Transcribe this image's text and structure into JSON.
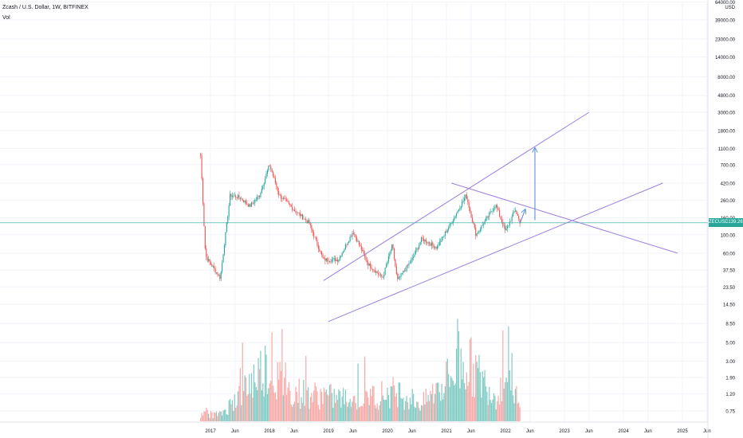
{
  "header": {
    "title": "Zcash / U.S. Dollar, 1W, BITFINEX",
    "volume_label": "Vol"
  },
  "currency": "USD",
  "symbol_badge": "ZECUSD",
  "last_price": "139.26",
  "colors": {
    "up": "#26a69a",
    "down": "#ef5350",
    "up_volume": "#80cbc4",
    "down_volume": "#f7a9a7",
    "trendline": "#9c7fe0",
    "arrow": "#5b8fe0",
    "price_line": "#26a69a"
  },
  "chart_data": {
    "type": "candlestick",
    "title": "Zcash / U.S. Dollar, 1W, BITFINEX",
    "x_axis": {
      "ticks": [
        "2017",
        "Jun",
        "2018",
        "Jun",
        "2019",
        "Jun",
        "2020",
        "Jun",
        "2021",
        "Jun",
        "2022",
        "Jun",
        "2023",
        "Jun",
        "2024",
        "Jun",
        "2025",
        "Jun"
      ]
    },
    "y_axis": {
      "scale": "log",
      "unit": "USD",
      "ticks": [
        "64000.00",
        "39000.00",
        "23000.00",
        "14000.00",
        "8000.00",
        "4800.00",
        "3000.00",
        "1800.00",
        "1100.00",
        "700.00",
        "420.00",
        "260.00",
        "160.00",
        "100.00",
        "60.00",
        "37.50",
        "23.50",
        "14.50",
        "8.50",
        "5.00",
        "3.00",
        "1.90",
        "1.20",
        "0.75"
      ],
      "range": [
        0.6,
        70000
      ]
    },
    "price_series": [
      {
        "date": "2016-11",
        "close": 900
      },
      {
        "date": "2016-12",
        "close": 55
      },
      {
        "date": "2017-03",
        "close": 30
      },
      {
        "date": "2017-05",
        "close": 300
      },
      {
        "date": "2017-07",
        "close": 280
      },
      {
        "date": "2017-09",
        "close": 220
      },
      {
        "date": "2017-11",
        "close": 300
      },
      {
        "date": "2018-01",
        "close": 700
      },
      {
        "date": "2018-03",
        "close": 300
      },
      {
        "date": "2018-06",
        "close": 200
      },
      {
        "date": "2018-09",
        "close": 140
      },
      {
        "date": "2018-11",
        "close": 70
      },
      {
        "date": "2018-12",
        "close": 50
      },
      {
        "date": "2019-03",
        "close": 50
      },
      {
        "date": "2019-06",
        "close": 110
      },
      {
        "date": "2019-09",
        "close": 45
      },
      {
        "date": "2019-12",
        "close": 30
      },
      {
        "date": "2020-02",
        "close": 75
      },
      {
        "date": "2020-03",
        "close": 28
      },
      {
        "date": "2020-06",
        "close": 50
      },
      {
        "date": "2020-08",
        "close": 90
      },
      {
        "date": "2020-11",
        "close": 70
      },
      {
        "date": "2021-02",
        "close": 140
      },
      {
        "date": "2021-05",
        "close": 300
      },
      {
        "date": "2021-07",
        "close": 100
      },
      {
        "date": "2021-09",
        "close": 150
      },
      {
        "date": "2021-11",
        "close": 230
      },
      {
        "date": "2022-01",
        "close": 110
      },
      {
        "date": "2022-03",
        "close": 200
      },
      {
        "date": "2022-04",
        "close": 139.26
      }
    ],
    "volume_unit": "relative",
    "volume_series": [
      {
        "date": "2017-03",
        "value": 0.08
      },
      {
        "date": "2017-06",
        "value": 0.25
      },
      {
        "date": "2017-12",
        "value": 0.65
      },
      {
        "date": "2018-05",
        "value": 0.35
      },
      {
        "date": "2018-11",
        "value": 0.3
      },
      {
        "date": "2019-06",
        "value": 0.25
      },
      {
        "date": "2020-03",
        "value": 0.35
      },
      {
        "date": "2020-08",
        "value": 0.2
      },
      {
        "date": "2021-05",
        "value": 0.7
      },
      {
        "date": "2021-11",
        "value": 0.3
      },
      {
        "date": "2022-02",
        "value": 0.6
      },
      {
        "date": "2022-04",
        "value": 0.1
      }
    ],
    "annotations": [
      {
        "type": "trendline",
        "from": {
          "date": "2018-12",
          "price": 28
        },
        "to": {
          "date": "2023-06",
          "price": 3000
        }
      },
      {
        "type": "trendline",
        "from": {
          "date": "2019-01",
          "price": 9
        },
        "to": {
          "date": "2024-09",
          "price": 420
        }
      },
      {
        "type": "trendline",
        "from": {
          "date": "2021-02",
          "price": 420
        },
        "to": {
          "date": "2024-12",
          "price": 60
        }
      },
      {
        "type": "arrow",
        "from": {
          "date": "2022-07",
          "price": 150
        },
        "to": {
          "date": "2022-07",
          "price": 1100
        }
      },
      {
        "type": "arrow",
        "from": {
          "date": "2022-04",
          "price": 140
        },
        "to": {
          "date": "2022-05",
          "price": 200
        }
      }
    ],
    "grid": true,
    "legend": "none"
  }
}
